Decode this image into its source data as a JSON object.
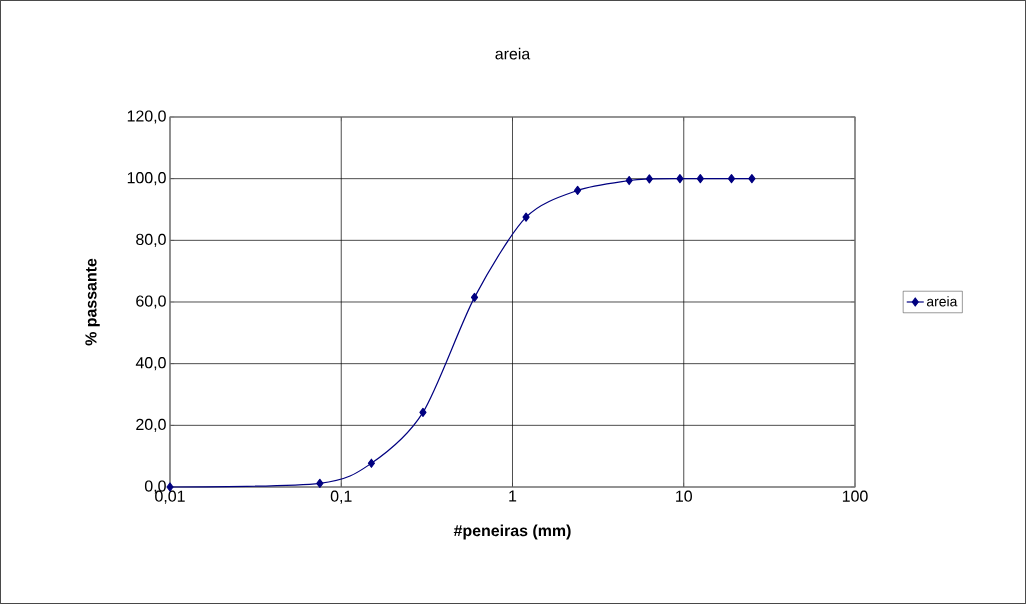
{
  "chart_data": {
    "type": "line",
    "title": "areia",
    "xlabel": "#peneiras (mm)",
    "ylabel": "% passante",
    "x": [
      0.01,
      0.075,
      0.15,
      0.3,
      0.6,
      1.2,
      2.4,
      4.8,
      6.3,
      9.5,
      12.5,
      19,
      25
    ],
    "series": [
      {
        "name": "areia",
        "color": "#000080",
        "values": [
          0,
          1.2,
          7.7,
          24.2,
          61.5,
          87.5,
          96.2,
          99.4,
          99.9,
          100,
          100,
          100,
          100
        ]
      }
    ],
    "log": "x",
    "xlim": [
      0.01,
      100
    ],
    "ylim": [
      0,
      120
    ],
    "xticks": [
      {
        "value": 0.01,
        "label": "0,01"
      },
      {
        "value": 0.1,
        "label": "0,1"
      },
      {
        "value": 1,
        "label": "1"
      },
      {
        "value": 10,
        "label": "10"
      },
      {
        "value": 100,
        "label": "100"
      }
    ],
    "yticks": [
      {
        "value": 0,
        "label": "0,0"
      },
      {
        "value": 20,
        "label": "20,0"
      },
      {
        "value": 40,
        "label": "40,0"
      },
      {
        "value": 60,
        "label": "60,0"
      },
      {
        "value": 80,
        "label": "80,0"
      },
      {
        "value": 100,
        "label": "100,0"
      },
      {
        "value": 120,
        "label": "120,0"
      }
    ],
    "grid": true,
    "legend": "right",
    "marker": "diamond",
    "line_style": "solid"
  }
}
